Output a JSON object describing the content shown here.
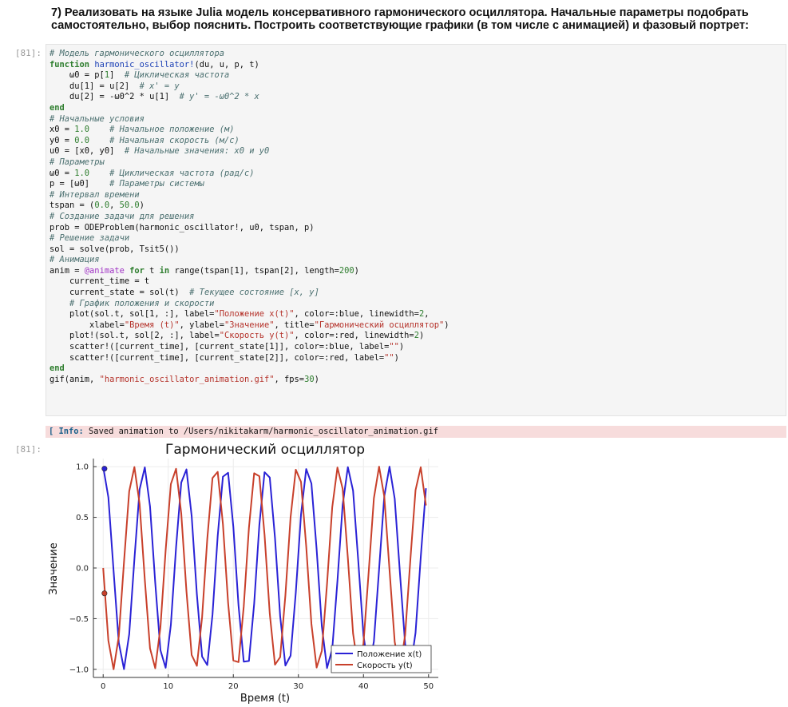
{
  "task": {
    "line1": "7) Реализовать на языке Julia модель консервативного гармонического осциллятора. Начальные параметры подобрать",
    "line2": "самостоятельно, выбор пояснить. Построить соответствующие графики (в том числе с анимацией) и фазовый портрет:"
  },
  "input_prompt": "[81]:",
  "output_prompt": "[81]:",
  "code": {
    "c_model": "# Модель гармонического осциллятора",
    "kw_function": "function",
    "fn_name": "harmonic_oscillator!",
    "fn_args": "(du, u, p, t)",
    "l3a": "    ω0 = p[",
    "l3n": "1",
    "l3b": "]  ",
    "l3c": "# Циклическая частота",
    "l4a": "    du[1] = u[2]  ",
    "l4c": "# x' = y",
    "l5a": "    du[2] = -ω0^2 * u[1]  ",
    "l5c": "# y' = -ω0^2 * x",
    "kw_end": "end",
    "c_init": "# Начальные условия",
    "l8a": "x0 = ",
    "l8n": "1.0",
    "l8b": "    ",
    "l8c": "# Начальное положение (м)",
    "l9a": "y0 = ",
    "l9n": "0.0",
    "l9b": "    ",
    "l9c": "# Начальная скорость (м/с)",
    "l10a": "u0 = [x0, y0]  ",
    "l10c": "# Начальные значения: x0 и y0",
    "c_params": "# Параметры",
    "l12a": "ω0 = ",
    "l12n": "1.0",
    "l12b": "    ",
    "l12c": "# Циклическая частота (рад/с)",
    "l13a": "p = [ω0]    ",
    "l13c": "# Параметры системы",
    "c_interval": "# Интервал времени",
    "l15a": "tspan = (",
    "l15n1": "0.0",
    "l15b": ", ",
    "l15n2": "50.0",
    "l15c": ")",
    "c_problem": "# Создание задачи для решения",
    "l17": "prob = ODEProblem(harmonic_oscillator!, u0, tspan, p)",
    "c_solve": "# Решение задачи",
    "l19": "sol = solve(prob, Tsit5())",
    "c_anim": "# Анимация",
    "l21a": "anim = ",
    "l21m": "@animate",
    "l21sp": " ",
    "l21kw": "for",
    "l21b": " t ",
    "l21in": "in",
    "l21c": " range(tspan[1], tspan[2], length=",
    "l21n": "200",
    "l21d": ")",
    "l22": "    current_time = t",
    "l23a": "    current_state = sol(t)  ",
    "l23c": "# Текущее состояние [x, y]",
    "l24c": "    # График положения и скорости",
    "l25a": "    plot(sol.t, sol[1, :], label=",
    "l25s": "\"Положение x(t)\"",
    "l25b": ", color=:blue, linewidth=",
    "l25n": "2",
    "l25c": ",",
    "l26a": "        xlabel=",
    "l26s1": "\"Время (t)\"",
    "l26b": ", ylabel=",
    "l26s2": "\"Значение\"",
    "l26c": ", title=",
    "l26s3": "\"Гармонический осциллятор\"",
    "l26d": ")",
    "l27a": "    plot!(sol.t, sol[2, :], label=",
    "l27s": "\"Скорость y(t)\"",
    "l27b": ", color=:red, linewidth=",
    "l27n": "2",
    "l27c": ")",
    "l28a": "    scatter!([current_time], [current_state[1]], color=:blue, label=",
    "l28s": "\"\"",
    "l28b": ")",
    "l29a": "    scatter!([current_time], [current_state[2]], color=:red, label=",
    "l29s": "\"\"",
    "l29b": ")",
    "l31a": "gif(anim, ",
    "l31s": "\"harmonic_oscillator_animation.gif\"",
    "l31b": ", fps=",
    "l31n": "30",
    "l31c": ")"
  },
  "stderr": {
    "tag": "[ Info:",
    "message": " Saved animation to /Users/nikitakarm/harmonic_oscillator_animation.gif"
  },
  "colors": {
    "position": "#2a22d6",
    "velocity": "#c8402b",
    "stderr_bg": "#f7dcdc"
  },
  "chart_data": {
    "type": "line",
    "title": "Гармонический осциллятор",
    "xlabel": "Время (t)",
    "ylabel": "Значение",
    "xlim": [
      -1.5,
      51.5
    ],
    "ylim": [
      -1.08,
      1.08
    ],
    "xticks": [
      0,
      10,
      20,
      30,
      40,
      50
    ],
    "yticks": [
      -1.0,
      -0.5,
      0.0,
      0.5,
      1.0
    ],
    "xtick_labels": [
      "0",
      "10",
      "20",
      "30",
      "40",
      "50"
    ],
    "ytick_labels": [
      "−1.0",
      "−0.5",
      "0.0",
      "0.5",
      "1.0"
    ],
    "grid": true,
    "legend_position": "bottom-right",
    "x_range": [
      0,
      50
    ],
    "omega": 1.0,
    "series": [
      {
        "name": "Положение x(t)",
        "color": "#2a22d6",
        "function": "cos",
        "step": 0.8
      },
      {
        "name": "Скорость y(t)",
        "color": "#c8402b",
        "function": "-sin",
        "step": 0.8
      }
    ],
    "markers": [
      {
        "x": 0.2,
        "y": 0.98,
        "color": "#2a22d6"
      },
      {
        "x": 0.2,
        "y": -0.25,
        "color": "#c8402b"
      }
    ]
  }
}
